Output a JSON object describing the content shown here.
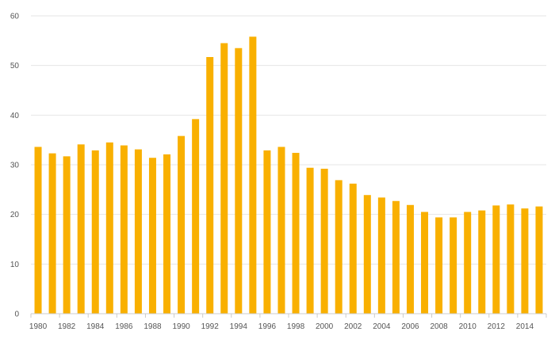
{
  "chart_data": {
    "type": "bar",
    "title": "",
    "xlabel": "",
    "ylabel": "",
    "ylim": [
      0,
      60
    ],
    "yticks": [
      0,
      10,
      20,
      30,
      40,
      50,
      60
    ],
    "grid": true,
    "bar_color": "#f9b000",
    "categories": [
      1980,
      1981,
      1982,
      1983,
      1984,
      1985,
      1986,
      1987,
      1988,
      1989,
      1990,
      1991,
      1992,
      1993,
      1994,
      1995,
      1996,
      1997,
      1998,
      1999,
      2000,
      2001,
      2002,
      2003,
      2004,
      2005,
      2006,
      2007,
      2008,
      2009,
      2010,
      2011,
      2012,
      2013,
      2014,
      2015
    ],
    "xtick_labels": [
      "1980",
      "1982",
      "1984",
      "1986",
      "1988",
      "1990",
      "1992",
      "1994",
      "1996",
      "1998",
      "2000",
      "2002",
      "2004",
      "2006",
      "2008",
      "2010",
      "2012",
      "2014"
    ],
    "values": [
      33.6,
      32.3,
      31.7,
      34.1,
      32.9,
      34.5,
      33.9,
      33.1,
      31.4,
      32.1,
      35.8,
      39.2,
      51.7,
      54.5,
      53.5,
      55.8,
      32.9,
      33.6,
      32.4,
      29.4,
      29.2,
      26.9,
      26.2,
      23.9,
      23.4,
      22.7,
      21.9,
      20.5,
      19.4,
      19.4,
      20.5,
      20.8,
      21.8,
      22.0,
      21.2,
      21.6
    ]
  }
}
